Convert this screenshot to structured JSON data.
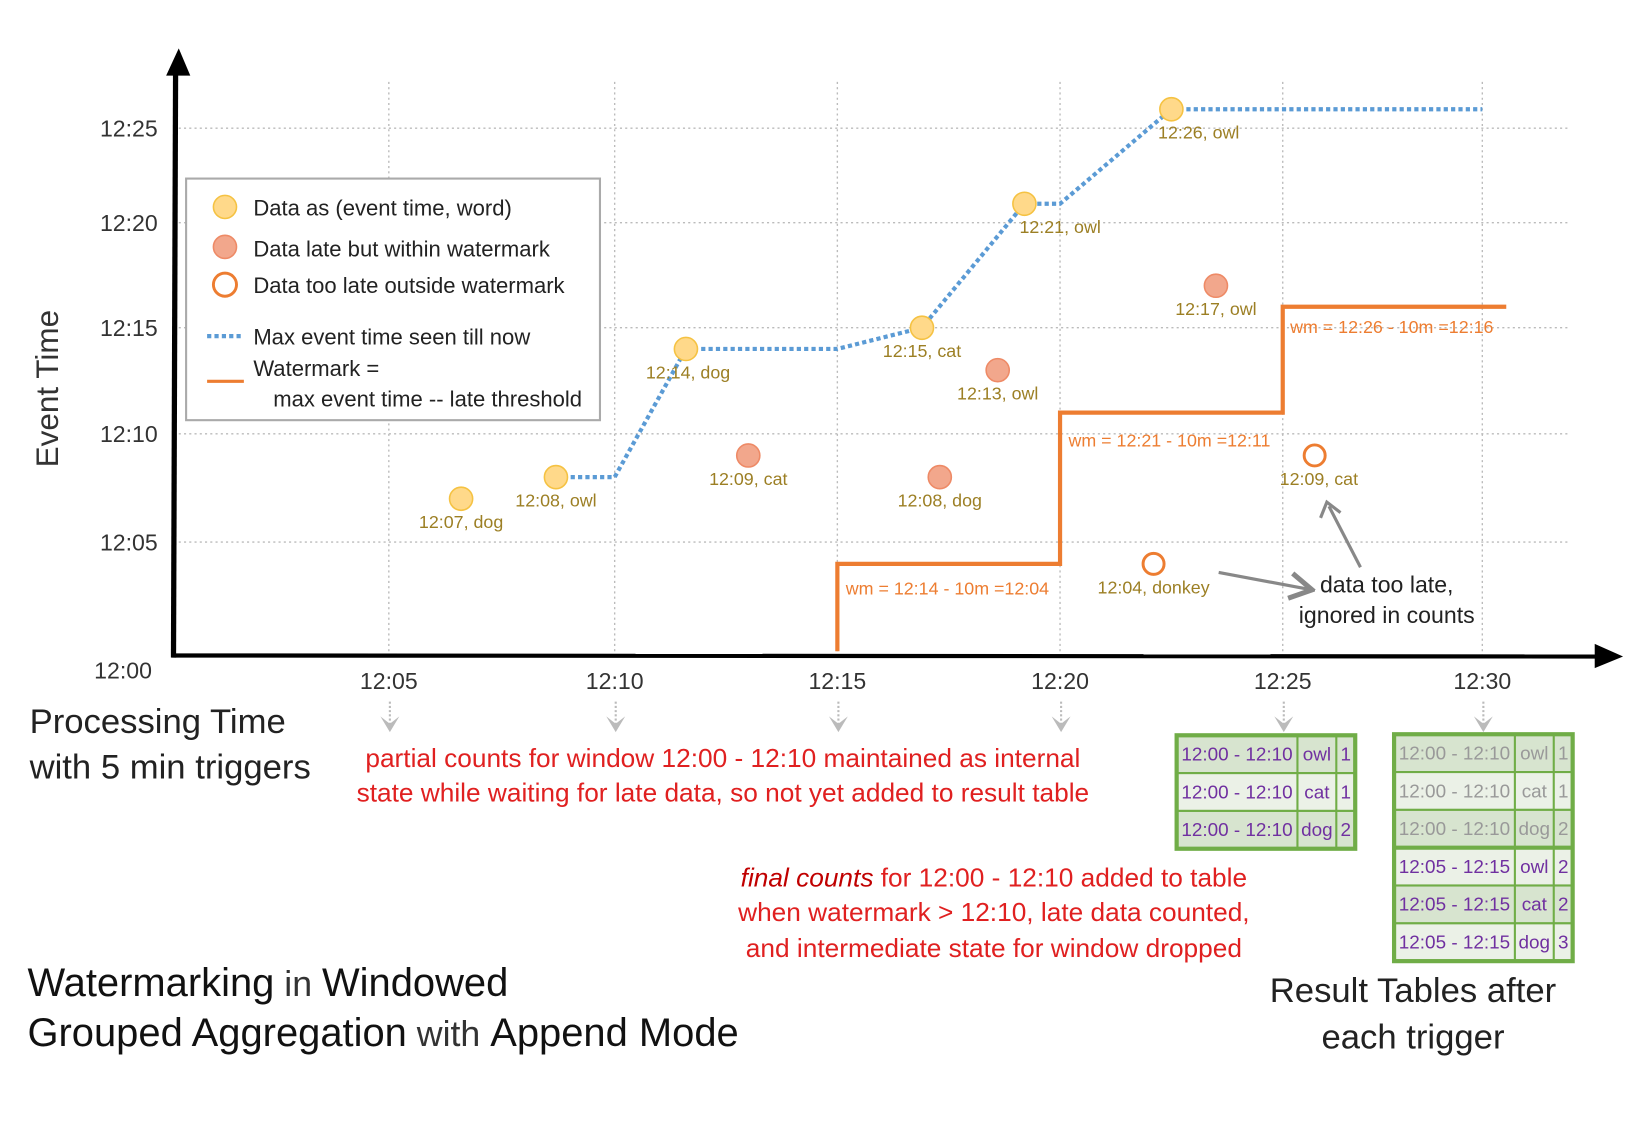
{
  "axes": {
    "y_label": "Event Time",
    "y_ticks": [
      "12:00",
      "12:05",
      "12:10",
      "12:15",
      "12:20",
      "12:25"
    ],
    "x_ticks": [
      "12:05",
      "12:10",
      "12:15",
      "12:20",
      "12:25",
      "12:30"
    ],
    "x_label_line1": "Processing Time",
    "x_label_line2": "with 5 min triggers"
  },
  "legend": {
    "on_time": "Data as (event time, word)",
    "late_within": "Data late but within watermark",
    "too_late": "Data too late outside watermark",
    "max_line": "Max event time seen till now",
    "watermark_line1": "Watermark =",
    "watermark_line2": "max event time -- late threshold"
  },
  "colors": {
    "on_time_fill": "#ffd98a",
    "on_time_stroke": "#f5c242",
    "late_fill": "#f2a78c",
    "late_stroke": "#ee8a66",
    "too_late_stroke": "#ed7d31",
    "max_line": "#5b9bd5",
    "watermark": "#ed7d31",
    "label": "#9c7f24",
    "annotation_red": "#e02020",
    "table_border": "#70ad47",
    "table_text": "#7030a0",
    "table_text_old": "#999999"
  },
  "points": [
    {
      "label": "12:07, dog",
      "proc": "12:06:36",
      "event": "12:07",
      "type": "on_time"
    },
    {
      "label": "12:08, owl",
      "proc": "12:08:42",
      "event": "12:08",
      "type": "on_time"
    },
    {
      "label": "12:14, dog",
      "proc": "12:11:36",
      "event": "12:14",
      "type": "on_time"
    },
    {
      "label": "12:09, cat",
      "proc": "12:13:00",
      "event": "12:09",
      "type": "late_within"
    },
    {
      "label": "12:15, cat",
      "proc": "12:16:54",
      "event": "12:15",
      "type": "on_time"
    },
    {
      "label": "12:08, dog",
      "proc": "12:17:18",
      "event": "12:08",
      "type": "late_within"
    },
    {
      "label": "12:13, owl",
      "proc": "12:18:36",
      "event": "12:13",
      "type": "late_within"
    },
    {
      "label": "12:21, owl",
      "proc": "12:19:12",
      "event": "12:21",
      "type": "on_time"
    },
    {
      "label": "12:04, donkey",
      "proc": "12:22:06",
      "event": "12:04",
      "type": "too_late"
    },
    {
      "label": "12:26, owl",
      "proc": "12:22:30",
      "event": "12:26",
      "type": "on_time"
    },
    {
      "label": "12:17, owl",
      "proc": "12:23:30",
      "event": "12:17",
      "type": "late_within"
    },
    {
      "label": "12:09, cat",
      "proc": "12:25:48",
      "event": "12:09",
      "type": "too_late"
    }
  ],
  "max_event_line": [
    [
      "12:08:42",
      "12:08"
    ],
    [
      "12:10:00",
      "12:08"
    ],
    [
      "12:11:36",
      "12:14"
    ],
    [
      "12:15:00",
      "12:14"
    ],
    [
      "12:16:54",
      "12:15"
    ],
    [
      "12:19:12",
      "12:21"
    ],
    [
      "12:20:00",
      "12:21"
    ],
    [
      "12:22:30",
      "12:26"
    ],
    [
      "12:30:00",
      "12:26"
    ]
  ],
  "watermark_line": [
    [
      "12:15:00",
      "12:00"
    ],
    [
      "12:15:00",
      "12:04"
    ],
    [
      "12:20:00",
      "12:04"
    ],
    [
      "12:20:00",
      "12:11"
    ],
    [
      "12:25:00",
      "12:11"
    ],
    [
      "12:25:00",
      "12:16"
    ],
    [
      "12:30:36",
      "12:16"
    ]
  ],
  "watermark_labels": [
    "wm = 12:14 - 10m =12:04",
    "wm = 12:21 - 10m =12:11",
    "wm = 12:26 - 10m =12:16"
  ],
  "annotations": {
    "too_late_1": "data too late,",
    "too_late_2": "ignored in counts",
    "partial_1": "partial counts for window 12:00 - 12:10 maintained as internal",
    "partial_2": "state while waiting for late data, so not yet added  to result table",
    "final_em": "final counts",
    "final_1": " for 12:00 - 12:10 added to table",
    "final_2": "when watermark > 12:10, late data counted,",
    "final_3": "and intermediate state for window dropped"
  },
  "title": {
    "w1": "Watermarking",
    "w2": " in ",
    "w3": "Windowed",
    "w4": "Grouped Aggregation",
    "w5": " with ",
    "w6": "Append Mode"
  },
  "result_caption": {
    "line1": "Result Tables after",
    "line2": "each trigger"
  },
  "result_tables": [
    {
      "trigger": "12:25",
      "rows": [
        {
          "window": "12:00 - 12:10",
          "word": "owl",
          "count": "1",
          "old": false
        },
        {
          "window": "12:00 - 12:10",
          "word": "cat",
          "count": "1",
          "old": false
        },
        {
          "window": "12:00 - 12:10",
          "word": "dog",
          "count": "2",
          "old": false
        }
      ]
    },
    {
      "trigger": "12:30",
      "rows": [
        {
          "window": "12:00 - 12:10",
          "word": "owl",
          "count": "1",
          "old": true
        },
        {
          "window": "12:00 - 12:10",
          "word": "cat",
          "count": "1",
          "old": true
        },
        {
          "window": "12:00 - 12:10",
          "word": "dog",
          "count": "2",
          "old": true
        },
        {
          "window": "12:05 - 12:15",
          "word": "owl",
          "count": "2",
          "old": false
        },
        {
          "window": "12:05 - 12:15",
          "word": "cat",
          "count": "2",
          "old": false
        },
        {
          "window": "12:05 - 12:15",
          "word": "dog",
          "count": "3",
          "old": false
        }
      ]
    }
  ]
}
